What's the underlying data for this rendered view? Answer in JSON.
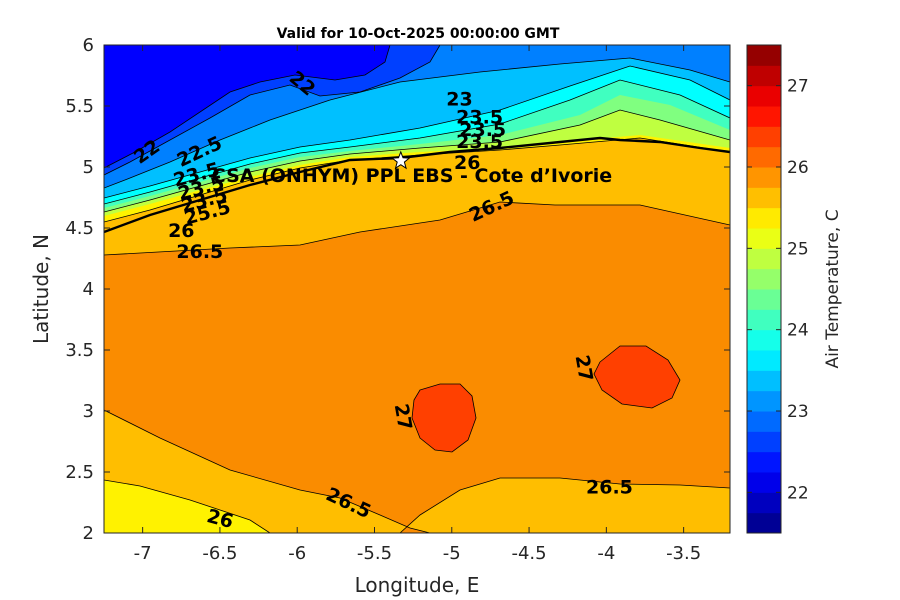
{
  "chart_data": {
    "type": "contour",
    "title": "Valid for 10-Oct-2025 00:00:00 GMT",
    "xlabel": "Longitude, E",
    "ylabel": "Latitude, N",
    "xlim": [
      -7.25,
      -3.2
    ],
    "ylim": [
      2,
      6
    ],
    "x_ticks": [
      "-7",
      "-6.5",
      "-6",
      "-5.5",
      "-5",
      "-4.5",
      "-4",
      "-3.5"
    ],
    "x_tick_values": [
      -7,
      -6.5,
      -6,
      -5.5,
      -5,
      -4.5,
      -4,
      -3.5
    ],
    "y_ticks": [
      "2",
      "2.5",
      "3",
      "3.5",
      "4",
      "4.5",
      "5",
      "5.5",
      "6"
    ],
    "y_tick_values": [
      2,
      2.5,
      3,
      3.5,
      4,
      4.5,
      5,
      5.5,
      6
    ],
    "colorbar": {
      "label": "Air Temperature, C",
      "range": [
        21.5,
        27.5
      ],
      "step": 0.25,
      "ticks": [
        "22",
        "23",
        "24",
        "25",
        "26",
        "27"
      ],
      "tick_values": [
        22,
        23,
        24,
        25,
        26,
        27
      ]
    },
    "contour_labels": [
      {
        "text": "22",
        "lon": -5.97,
        "lat": 5.68,
        "angle": 40
      },
      {
        "text": "22",
        "lon": -6.97,
        "lat": 5.12,
        "angle": -35
      },
      {
        "text": "22.5",
        "lon": -6.63,
        "lat": 5.12,
        "angle": -25
      },
      {
        "text": "23",
        "lon": -4.95,
        "lat": 5.55,
        "angle": 0
      },
      {
        "text": "23.5",
        "lon": -4.82,
        "lat": 5.4,
        "angle": 0
      },
      {
        "text": "23.5",
        "lon": -6.65,
        "lat": 4.93,
        "angle": -15
      },
      {
        "text": "23.5",
        "lon": -6.62,
        "lat": 4.82,
        "angle": -15
      },
      {
        "text": "23.5",
        "lon": -6.6,
        "lat": 4.72,
        "angle": -15
      },
      {
        "text": "25.5",
        "lon": -6.58,
        "lat": 4.62,
        "angle": -15
      },
      {
        "text": "26",
        "lon": -6.75,
        "lat": 4.47,
        "angle": 0
      },
      {
        "text": "26.5",
        "lon": -6.63,
        "lat": 4.3,
        "angle": 0
      },
      {
        "text": "23.5",
        "lon": -4.8,
        "lat": 5.3,
        "angle": 0
      },
      {
        "text": "23.5",
        "lon": -4.82,
        "lat": 5.2,
        "angle": 0
      },
      {
        "text": "26",
        "lon": -4.9,
        "lat": 5.03,
        "angle": 0
      },
      {
        "text": "26.5",
        "lon": -4.74,
        "lat": 4.67,
        "angle": -25
      },
      {
        "text": "27",
        "lon": -5.32,
        "lat": 2.95,
        "angle": 80
      },
      {
        "text": "27",
        "lon": -4.15,
        "lat": 3.35,
        "angle": 80
      },
      {
        "text": "26.5",
        "lon": -5.67,
        "lat": 2.24,
        "angle": 25
      },
      {
        "text": "26.5",
        "lon": -3.98,
        "lat": 2.37,
        "angle": 0
      },
      {
        "text": "26",
        "lon": -6.5,
        "lat": 2.11,
        "angle": 15
      }
    ],
    "annotations": [
      {
        "text": "CSA (ONHYM) PPL EBS - Cote d’Ivorie",
        "lon": -5.33,
        "lat": 5.05,
        "marker": "star"
      }
    ]
  }
}
